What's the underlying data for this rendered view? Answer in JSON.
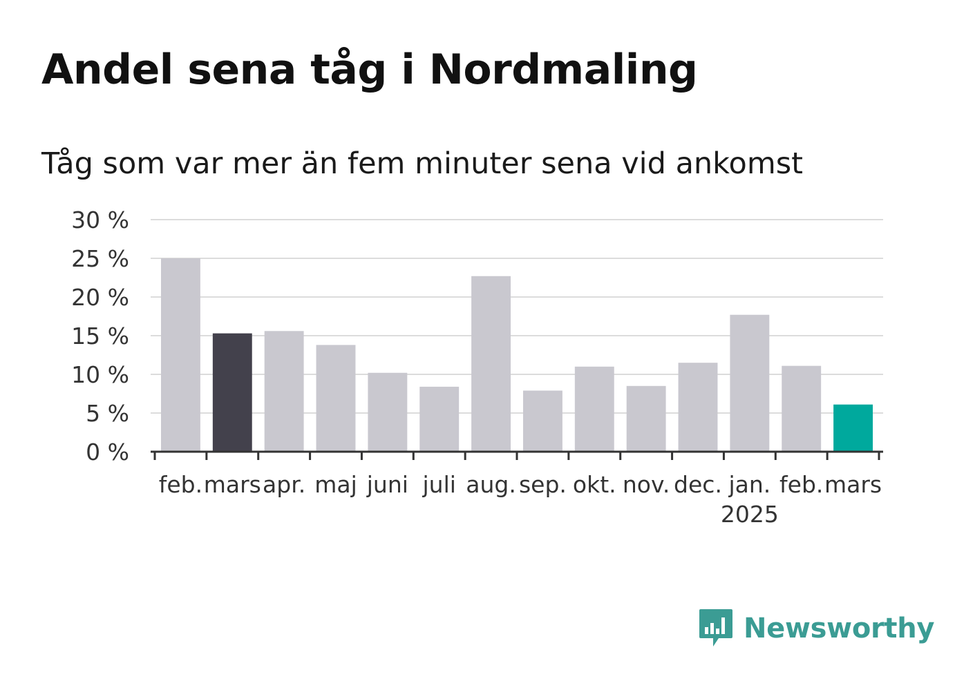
{
  "title": "Andel sena tåg i Nordmaling",
  "subtitle": "Tåg som var mer än fem minuter sena vid ankomst",
  "brand": {
    "name": "Newsworthy",
    "icon": "newsworthy-logo-icon",
    "color": "#3b9c94"
  },
  "chart_data": {
    "type": "bar",
    "categories": [
      "feb.",
      "mars",
      "apr.",
      "maj",
      "juni",
      "juli",
      "aug.",
      "sep.",
      "okt.",
      "nov.",
      "dec.",
      "jan.",
      "feb.",
      "mars"
    ],
    "category_sublabels": [
      "",
      "",
      "",
      "",
      "",
      "",
      "",
      "",
      "",
      "",
      "",
      "2025",
      "",
      ""
    ],
    "values": [
      25.0,
      15.3,
      15.6,
      13.8,
      10.2,
      8.4,
      22.7,
      7.9,
      11.0,
      8.5,
      11.5,
      17.7,
      11.1,
      6.1
    ],
    "bar_colors": [
      "#c9c8cf",
      "#43414c",
      "#c9c8cf",
      "#c9c8cf",
      "#c9c8cf",
      "#c9c8cf",
      "#c9c8cf",
      "#c9c8cf",
      "#c9c8cf",
      "#c9c8cf",
      "#c9c8cf",
      "#c9c8cf",
      "#c9c8cf",
      "#00a99d"
    ],
    "yticks": [
      0,
      5,
      10,
      15,
      20,
      25,
      30
    ],
    "ytick_labels": [
      "0 %",
      "5 %",
      "10 %",
      "15 %",
      "20 %",
      "25 %",
      "30 %"
    ],
    "ylim": [
      0,
      30
    ],
    "xlabel": "",
    "ylabel": "",
    "grid": true,
    "legend": "none"
  }
}
